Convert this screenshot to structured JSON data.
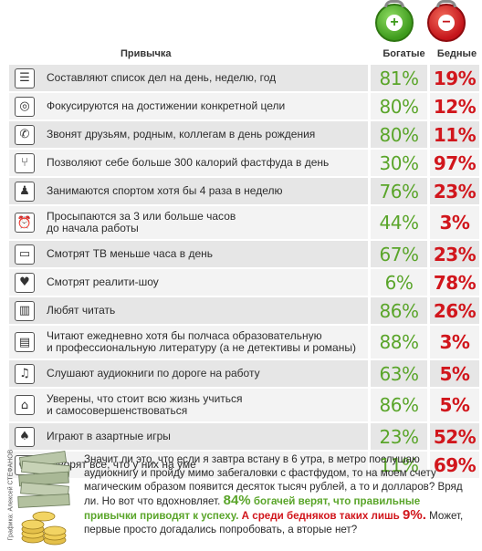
{
  "header": {
    "habit": "Привычка",
    "rich": "Богатые",
    "poor": "Бедные"
  },
  "wallets": {
    "rich_sign": "+",
    "poor_sign": "−",
    "rich_color": "#3d9a1c",
    "poor_color": "#c4141a"
  },
  "rows": [
    {
      "icon": "list-icon",
      "glyph": "☰",
      "text": "Составляют список дел на день, неделю, год",
      "rich": "81%",
      "poor": "19%"
    },
    {
      "icon": "target-icon",
      "glyph": "◎",
      "text": "Фокусируются на достижении конкретной цели",
      "rich": "80%",
      "poor": "12%"
    },
    {
      "icon": "phone-icon",
      "glyph": "✆",
      "text": "Звонят друзьям, родным, коллегам в день рождения",
      "rich": "80%",
      "poor": "11%"
    },
    {
      "icon": "fork-icon",
      "glyph": "⑂",
      "text": "Позволяют себе больше 300 калорий фастфуда в день",
      "rich": "30%",
      "poor": "97%"
    },
    {
      "icon": "runner-icon",
      "glyph": "♟",
      "text": "Занимаются спортом хотя бы 4 раза в неделю",
      "rich": "76%",
      "poor": "23%"
    },
    {
      "icon": "alarm-clock-icon",
      "glyph": "⏰",
      "text": "Просыпаются за 3 или больше часов\nдо начала работы",
      "rich": "44%",
      "poor": "3%"
    },
    {
      "icon": "tv-icon",
      "glyph": "▭",
      "text": "Смотрят ТВ меньше часа в день",
      "rich": "67%",
      "poor": "23%"
    },
    {
      "icon": "tv-heart-icon",
      "glyph": "♥",
      "text": "Смотрят реалити-шоу",
      "rich": "6%",
      "poor": "78%"
    },
    {
      "icon": "books-icon",
      "glyph": "▥",
      "text": "Любят читать",
      "rich": "86%",
      "poor": "26%"
    },
    {
      "icon": "book-stack-icon",
      "glyph": "▤",
      "text": "Читают ежедневно хотя бы полчаса образовательную\nи профессиональную литературу (а не детективы и романы)",
      "rich": "88%",
      "poor": "3%"
    },
    {
      "icon": "headphones-icon",
      "glyph": "♫",
      "text": "Слушают аудиокниги по дороге на работу",
      "rich": "63%",
      "poor": "5%"
    },
    {
      "icon": "graduation-cap-icon",
      "glyph": "⌂",
      "text": "Уверены, что стоит всю жизнь учиться\nи самосовершенствоваться",
      "rich": "86%",
      "poor": "5%"
    },
    {
      "icon": "spade-icon",
      "glyph": "♠",
      "text": "Играют в азартные игры",
      "rich": "23%",
      "poor": "52%"
    },
    {
      "icon": "speech-bubble-icon",
      "glyph": "☺",
      "text": "Говорят все, что у них на уме",
      "rich": "11%",
      "poor": "69%"
    }
  ],
  "credit": "Графика: Алексей СТЕФАНОВ",
  "footer": {
    "p1": "Значит ли это, что если я завтра встану в 6 утра, в метро послушаю аудиокнигу и пройду мимо забегаловки с фастфудом, то на моем счету магическим образом появится десяток тысяч рублей, а то и долларов? Вряд ли. Но вот что вдохновляет.",
    "pct_rich": "84%",
    "green_text": "богачей верят, что правильные привычки приводят к успеху.",
    "red_text": "А среди бедняков таких лишь",
    "pct_poor": "9%.",
    "p2": "Может, первые просто догадались попробовать, а вторые нет?"
  }
}
